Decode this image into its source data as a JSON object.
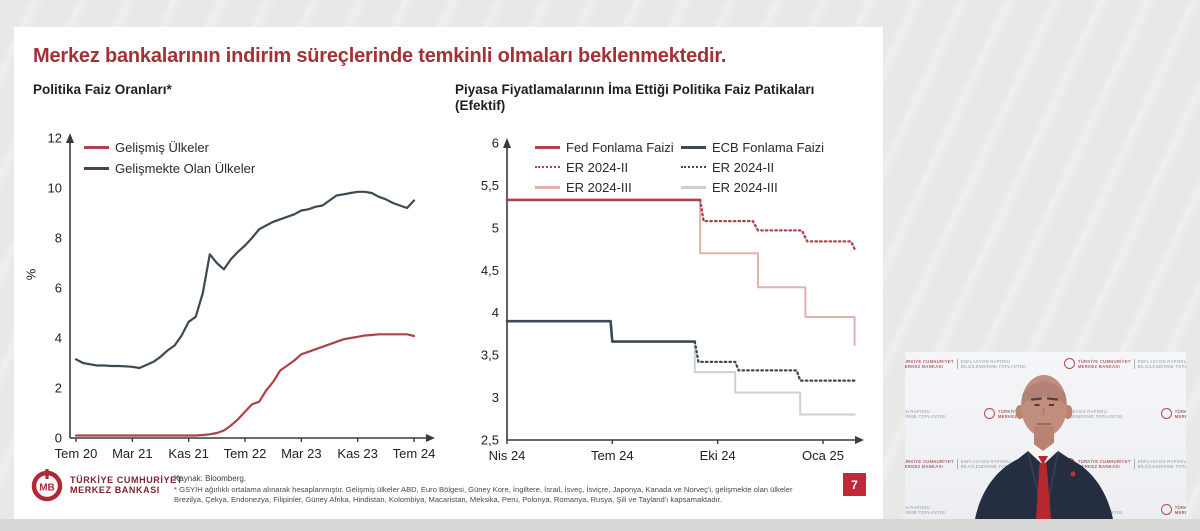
{
  "slide": {
    "title": "Merkez bankalarının indirim süreçlerinde temkinli olmaları beklenmektedir.",
    "left_subtitle": "Politika Faiz Oranları*",
    "right_subtitle_line1": "Piyasa Fiyatlamalarının İma Ettiği Politika Faiz Patikaları",
    "right_subtitle_line2": "(Efektif)",
    "source": "Kaynak: Bloomberg.",
    "footnote_line1": "* GSYİH ağırlıklı ortalama alınarak hesaplanmıştır. Gelişmiş ülkeler ABD, Euro Bölgesi, Güney Kore, İngiltere, İsrail, İsveç, İsviçre, Japonya, Kanada ve Norveç'i, gelişmekte olan ülkeler",
    "footnote_line2": "Brezilya, Çekya, Endonezya, Filipinler, Güney Afrika, Hindistan, Kolombiya, Macaristan, Meksika, Peru, Polonya, Romanya, Rusya, Şili ve Tayland'ı kapsamaktadır.",
    "page_number": "7",
    "logo": {
      "monogram": "TMB",
      "line1": "TÜRKİYE CUMHURİYET",
      "line2": "MERKEZ BANKASI"
    }
  },
  "video": {
    "backdrop": {
      "bank_line1": "TÜRKİYE CUMHURİYET",
      "bank_line2": "MERKEZ BANKASI",
      "event_line1": "ENFLASYON RAPORU",
      "event_line2": "BİLGİLENDİRME TOPLANTISI"
    }
  },
  "colors": {
    "title_red": "#a23236",
    "fed_red": "#ad4348",
    "pink": "#dfb2ac",
    "slate_dark": "#3d4a53",
    "light_gray_line": "#cdd0d0",
    "badge_red": "#c0293a",
    "axis": "#3a3a3a"
  },
  "chart_data": [
    {
      "type": "line",
      "title": "Politika Faiz Oranları*",
      "xlabel": "",
      "ylabel": "%",
      "ylim": [
        0,
        12
      ],
      "x_start": "Tem 20",
      "x_unit": "month",
      "grid": false,
      "legend_position": "top-left",
      "yticks": [
        {
          "v": 0,
          "label": "0"
        },
        {
          "v": 2,
          "label": "2"
        },
        {
          "v": 4,
          "label": "4"
        },
        {
          "v": 6,
          "label": "6"
        },
        {
          "v": 8,
          "label": "8"
        },
        {
          "v": 10,
          "label": "10"
        },
        {
          "v": 12,
          "label": "12"
        }
      ],
      "xticks": [
        {
          "v": 0,
          "label": "Tem 20"
        },
        {
          "v": 8,
          "label": "Mar 21"
        },
        {
          "v": 16,
          "label": "Kas 21"
        },
        {
          "v": 24,
          "label": "Tem 22"
        },
        {
          "v": 32,
          "label": "Mar 23"
        },
        {
          "v": 40,
          "label": "Kas 23"
        },
        {
          "v": 48,
          "label": "Tem 24"
        }
      ],
      "series": [
        {
          "name": "Gelişmiş Ülkeler",
          "color": "#ad4348",
          "width": 2.2,
          "values": [
            0.1,
            0.1,
            0.1,
            0.1,
            0.1,
            0.1,
            0.1,
            0.1,
            0.1,
            0.1,
            0.1,
            0.1,
            0.1,
            0.1,
            0.1,
            0.1,
            0.1,
            0.1,
            0.12,
            0.15,
            0.2,
            0.3,
            0.5,
            0.75,
            1.05,
            1.35,
            1.45,
            1.9,
            2.25,
            2.7,
            2.9,
            3.1,
            3.35,
            3.45,
            3.55,
            3.65,
            3.75,
            3.85,
            3.95,
            4.0,
            4.05,
            4.1,
            4.12,
            4.15,
            4.15,
            4.15,
            4.15,
            4.15,
            4.08
          ]
        },
        {
          "name": "Gelişmekte Olan Ülkeler",
          "color": "#3d4a53",
          "width": 2.2,
          "values": [
            3.15,
            3.0,
            2.95,
            2.9,
            2.9,
            2.88,
            2.88,
            2.87,
            2.85,
            2.8,
            2.92,
            3.05,
            3.25,
            3.5,
            3.7,
            4.1,
            4.65,
            4.85,
            5.8,
            7.35,
            7.0,
            6.75,
            7.15,
            7.45,
            7.7,
            8.0,
            8.35,
            8.5,
            8.65,
            8.75,
            8.85,
            8.95,
            9.1,
            9.15,
            9.25,
            9.3,
            9.5,
            9.7,
            9.75,
            9.8,
            9.85,
            9.85,
            9.8,
            9.65,
            9.55,
            9.4,
            9.3,
            9.2,
            9.5
          ]
        }
      ]
    },
    {
      "type": "line",
      "title": "Piyasa Fiyatlamalarının İma Ettiği Politika Faiz Patikaları (Efektif)",
      "xlabel": "",
      "ylabel": "",
      "ylim": [
        2.5,
        6
      ],
      "x_start": "Nis 24",
      "x_unit": "month",
      "grid": false,
      "legend_position": "top",
      "yticks": [
        {
          "v": 2.5,
          "label": "2,5"
        },
        {
          "v": 3,
          "label": "3"
        },
        {
          "v": 3.5,
          "label": "3,5"
        },
        {
          "v": 4,
          "label": "4"
        },
        {
          "v": 4.5,
          "label": "4,5"
        },
        {
          "v": 5,
          "label": "5"
        },
        {
          "v": 5.5,
          "label": "5,5"
        },
        {
          "v": 6,
          "label": "6"
        }
      ],
      "xticks": [
        {
          "v": 0,
          "label": "Nis 24"
        },
        {
          "v": 3,
          "label": "Tem 24"
        },
        {
          "v": 6,
          "label": "Eki 24"
        },
        {
          "v": 9,
          "label": "Oca 25"
        }
      ],
      "series": [
        {
          "name": "Fed Fonlama Faizi",
          "color": "#ad4348",
          "width": 2.6,
          "points": [
            [
              0,
              5.33
            ],
            [
              5.5,
              5.33
            ]
          ]
        },
        {
          "name": "ER 2024-II",
          "color": "#ad4348",
          "width": 2.3,
          "dash": "1.5 3.2",
          "points": [
            [
              5.5,
              5.33
            ],
            [
              5.6,
              5.08
            ],
            [
              7.0,
              5.08
            ],
            [
              7.15,
              4.97
            ],
            [
              8.4,
              4.97
            ],
            [
              8.55,
              4.84
            ],
            [
              9.8,
              4.84
            ],
            [
              9.9,
              4.75
            ]
          ]
        },
        {
          "name": "ER 2024-III",
          "color": "#dfb2ac",
          "width": 2,
          "points": [
            [
              5.5,
              5.33
            ],
            [
              5.5,
              4.7
            ],
            [
              7.15,
              4.7
            ],
            [
              7.15,
              4.3
            ],
            [
              8.5,
              4.3
            ],
            [
              8.5,
              3.95
            ],
            [
              9.9,
              3.95
            ],
            [
              9.9,
              3.62
            ]
          ]
        },
        {
          "name": "ECB Fonlama Faizi",
          "color": "#3d4a53",
          "width": 2.6,
          "points": [
            [
              0,
              3.9
            ],
            [
              2.95,
              3.9
            ],
            [
              3.0,
              3.66
            ],
            [
              5.35,
              3.66
            ]
          ]
        },
        {
          "name": "ER 2024-II",
          "color": "#3d4a53",
          "width": 2.3,
          "dash": "1.5 3.2",
          "points": [
            [
              5.35,
              3.66
            ],
            [
              5.45,
              3.42
            ],
            [
              6.5,
              3.42
            ],
            [
              6.6,
              3.32
            ],
            [
              8.25,
              3.32
            ],
            [
              8.35,
              3.2
            ],
            [
              9.9,
              3.2
            ]
          ]
        },
        {
          "name": "ER 2024-III",
          "color": "#cdd0d0",
          "width": 2,
          "points": [
            [
              5.35,
              3.66
            ],
            [
              5.35,
              3.3
            ],
            [
              6.5,
              3.3
            ],
            [
              6.5,
              3.06
            ],
            [
              8.35,
              3.06
            ],
            [
              8.35,
              2.8
            ],
            [
              9.9,
              2.8
            ]
          ]
        }
      ]
    }
  ]
}
